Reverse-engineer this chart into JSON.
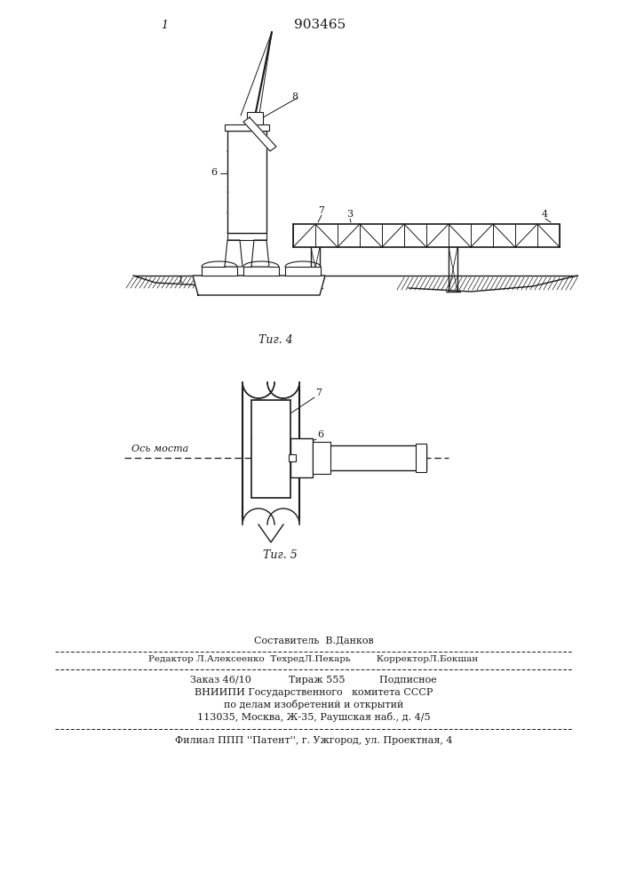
{
  "patent_number": "903465",
  "page_number": "1",
  "fig4_caption": "Τиг. 4",
  "fig5_caption": "Τиг. 5",
  "axis_label": "Ось моста",
  "footer_line1": "Составитель  В.Данков",
  "footer_line2": "Редактор Л.Алексеенко  ТехредЛ.Пекарь         КорректорЛ.Бокшан",
  "footer_line3": "Заказ 46/10            Тираж 555           Подписное",
  "footer_line4": "ВНИИПИ Государственного   комитета СССР",
  "footer_line5": "по делам изобретений и открытий",
  "footer_line6": "113035, Москва, Ж-35, Раушская наб., д. 4/5",
  "footer_line7": "Филиал ППП ''Патент'', г. Ужгород, ул. Проектная, 4",
  "bg_color": "#ffffff",
  "line_color": "#1a1a1a"
}
